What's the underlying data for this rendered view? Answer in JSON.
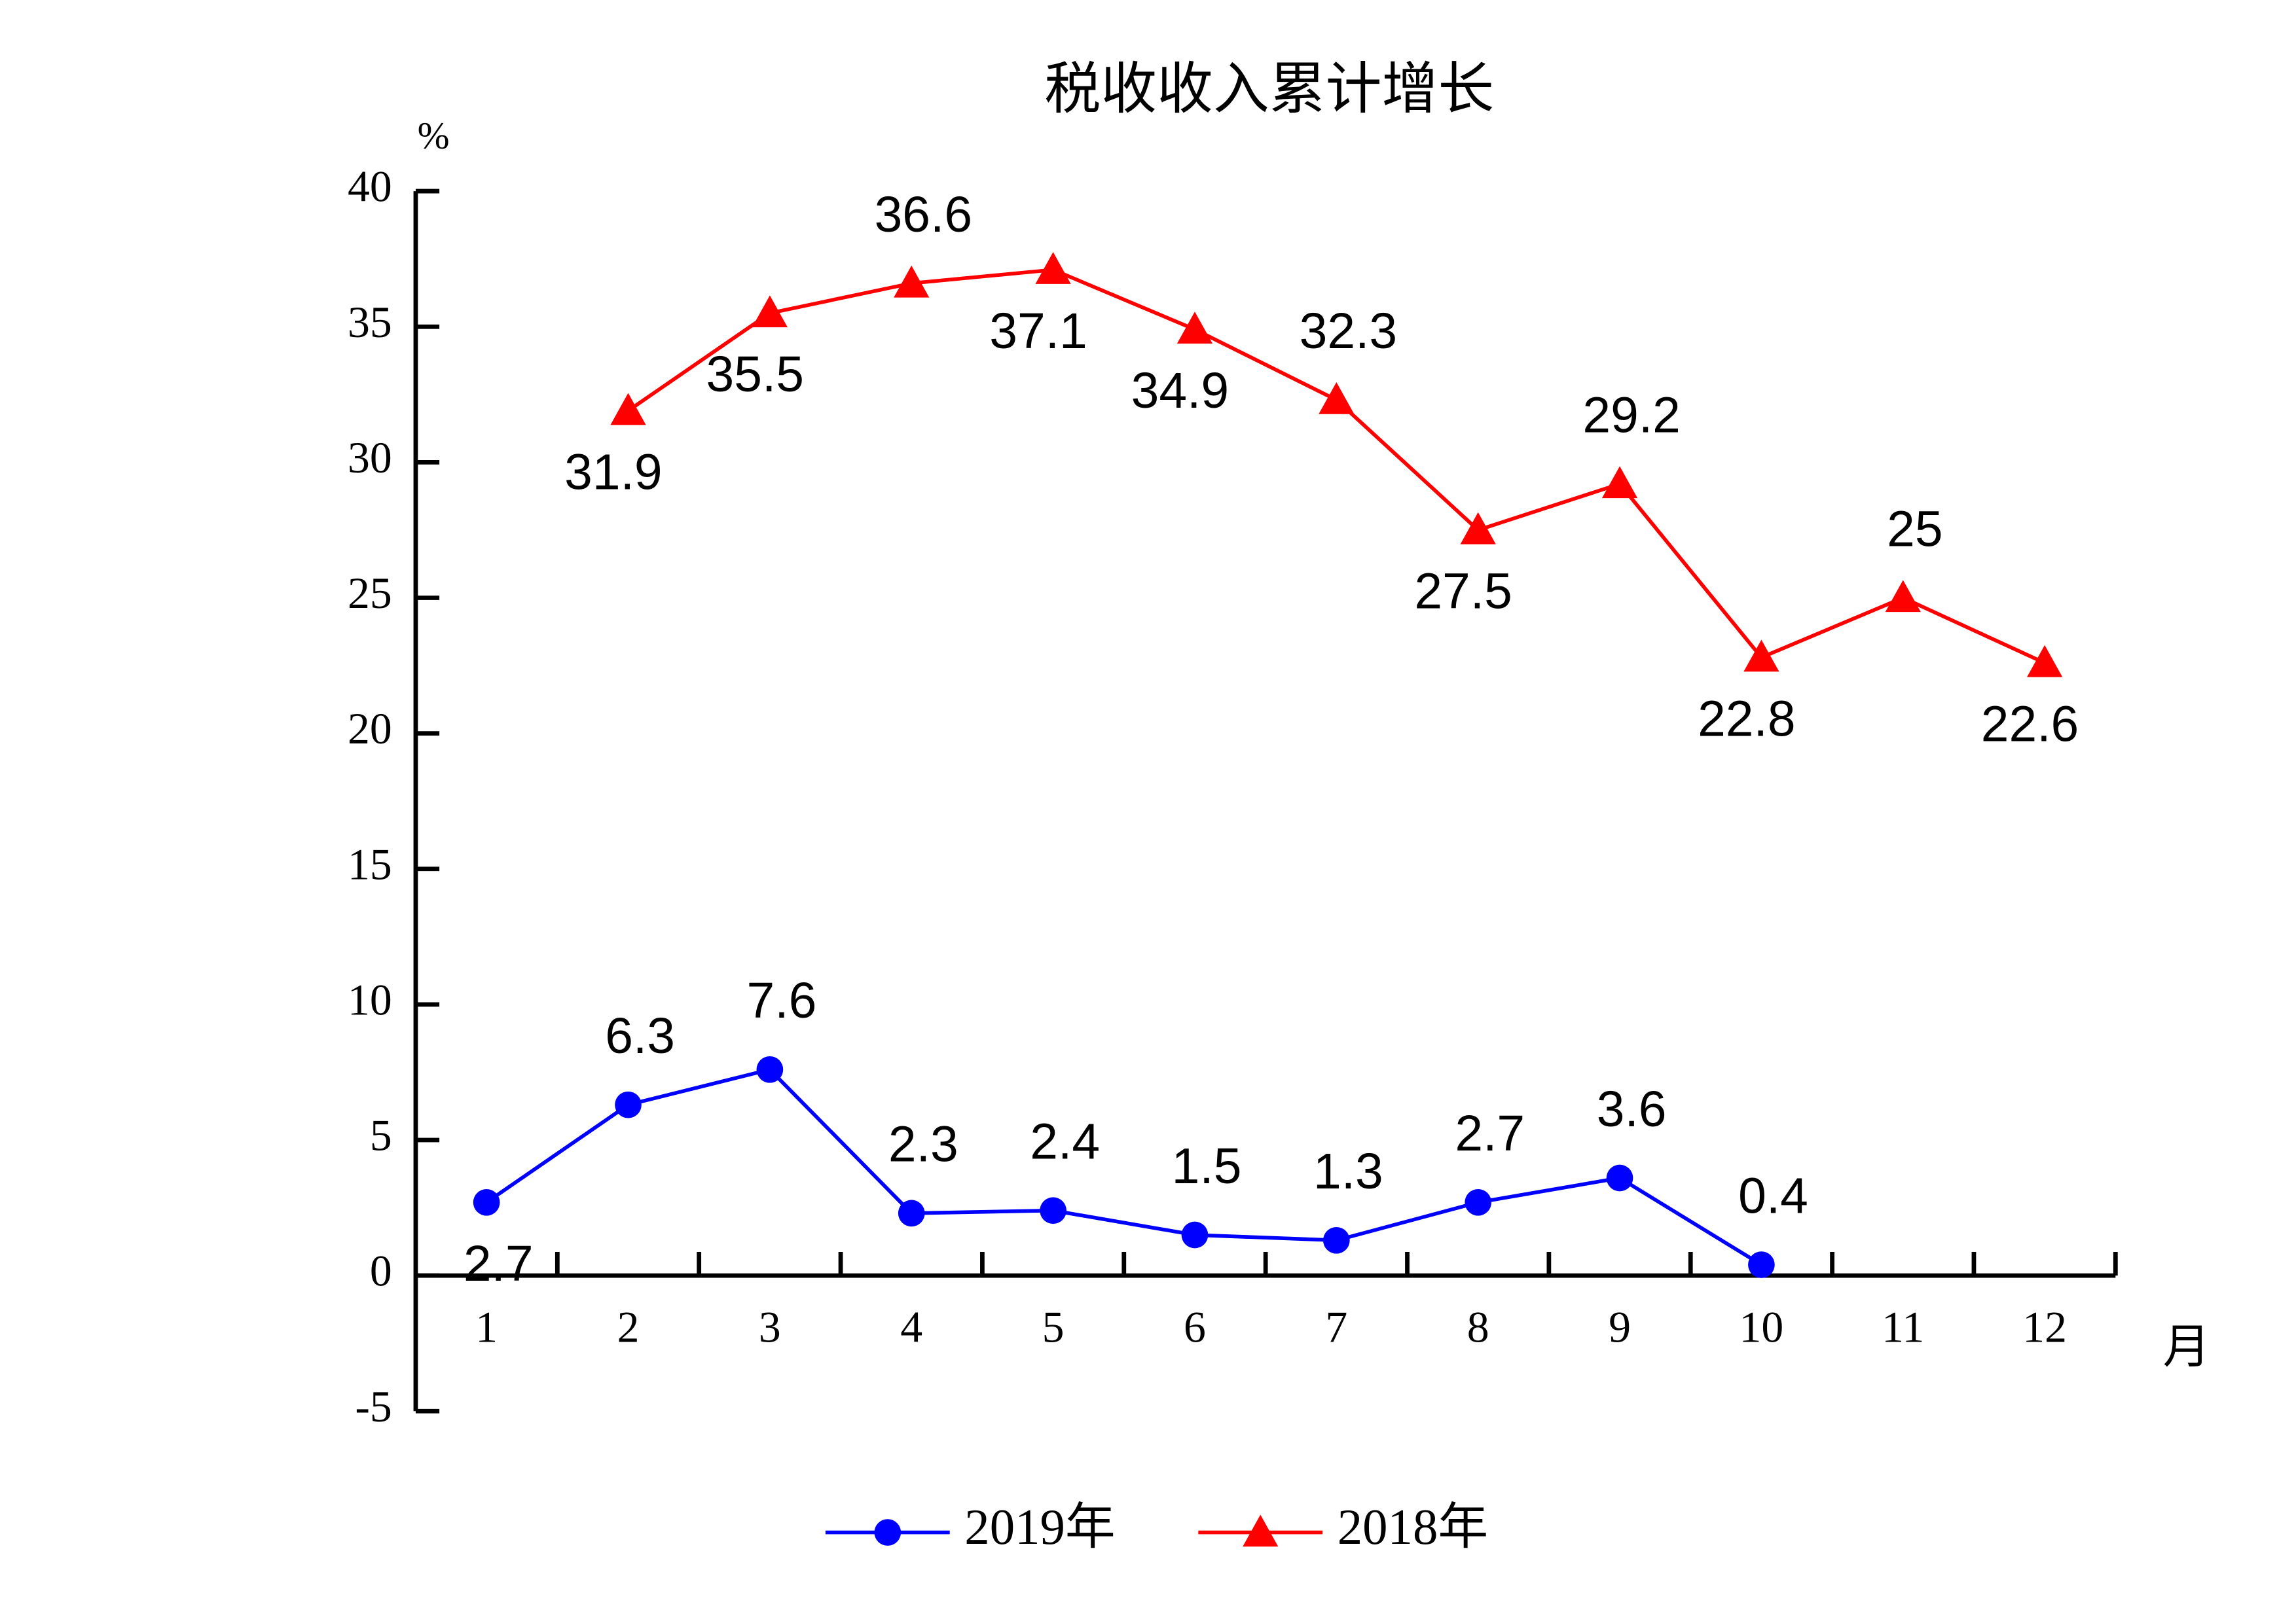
{
  "chart_data": {
    "type": "line",
    "title": "税收收入累计增长",
    "y_unit_label": "%",
    "x_unit_label": "月",
    "categories": [
      "1",
      "2",
      "3",
      "4",
      "5",
      "6",
      "7",
      "8",
      "9",
      "10",
      "11",
      "12"
    ],
    "series": [
      {
        "name": "2019年",
        "color": "#0000ff",
        "marker": "circle",
        "values": [
          2.7,
          6.3,
          7.6,
          2.3,
          2.4,
          1.5,
          1.3,
          2.7,
          3.6,
          0.4,
          null,
          null
        ]
      },
      {
        "name": "2018年",
        "color": "#ff0000",
        "marker": "triangle",
        "values": [
          null,
          31.9,
          35.5,
          36.6,
          37.1,
          34.9,
          32.3,
          27.5,
          29.2,
          22.8,
          25,
          22.6
        ]
      }
    ],
    "ylim": [
      -5,
      40
    ],
    "yticks": [
      -5,
      0,
      5,
      10,
      15,
      20,
      25,
      30,
      35,
      40
    ],
    "grid": false,
    "legend": "bottom"
  }
}
